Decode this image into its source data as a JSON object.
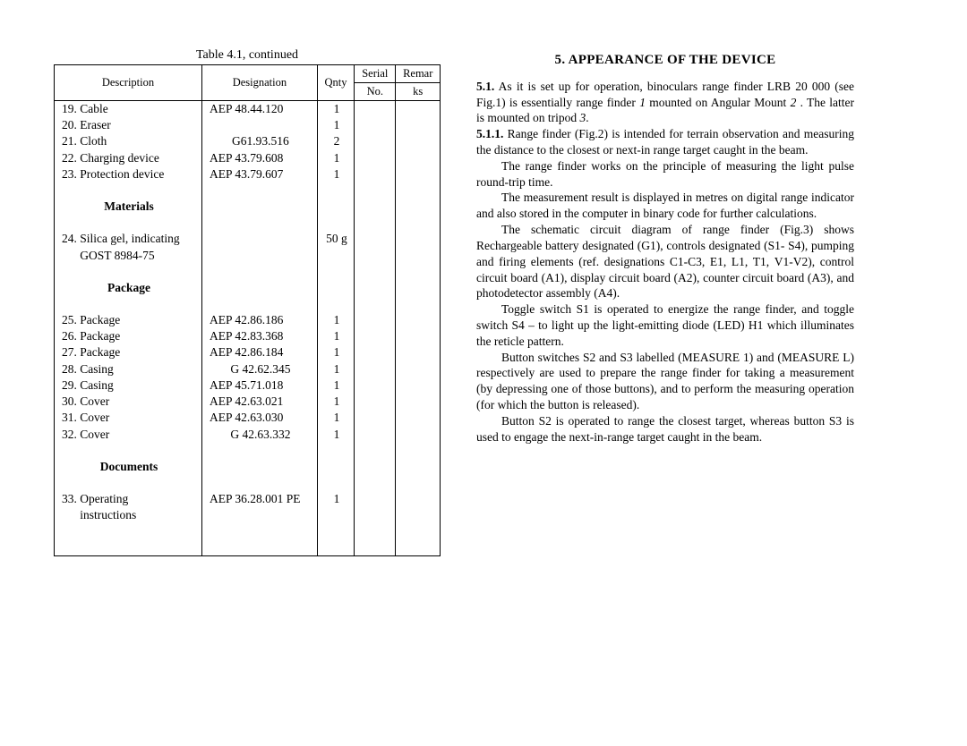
{
  "table": {
    "caption": "Table 4.1, continued",
    "headers": {
      "desc": "Description",
      "desig": "Designation",
      "qty": "Qnty",
      "serial": "Serial No.",
      "rem": "Remarks"
    },
    "rows": [
      {
        "desc": "19. Cable",
        "desig": "AEP 48.44.120",
        "qty": "1"
      },
      {
        "desc": "20. Eraser",
        "desig": "",
        "qty": "1"
      },
      {
        "desc": "21. Cloth",
        "desig": "G61.93.516",
        "qty": "2"
      },
      {
        "desc": "22. Charging device",
        "desig": "AEP 43.79.608",
        "qty": "1"
      },
      {
        "desc": "23. Protection device",
        "desig": "AEP 43.79.607",
        "qty": "1"
      },
      {
        "blank": true
      },
      {
        "desc": "Materials",
        "bold": true
      },
      {
        "blank": true
      },
      {
        "desc": "24. Silica gel, indicating",
        "desig": "",
        "qty": "50 g"
      },
      {
        "desc": "      GOST 8984-75",
        "desig": "",
        "qty": ""
      },
      {
        "blank": true
      },
      {
        "desc": "Package",
        "bold": true
      },
      {
        "blank": true
      },
      {
        "desc": "25. Package",
        "desig": "AEP 42.86.186",
        "qty": "1"
      },
      {
        "desc": "26. Package",
        "desig": "AEP 42.83.368",
        "qty": "1"
      },
      {
        "desc": "27. Package",
        "desig": "AEP 42.86.184",
        "qty": "1"
      },
      {
        "desc": "28. Casing",
        "desig": "G 42.62.345",
        "qty": "1"
      },
      {
        "desc": "29. Casing",
        "desig": "AEP 45.71.018",
        "qty": "1"
      },
      {
        "desc": "30. Cover",
        "desig": "AEP 42.63.021",
        "qty": "1"
      },
      {
        "desc": "31. Cover",
        "desig": "AEP 42.63.030",
        "qty": "1"
      },
      {
        "desc": "32. Cover",
        "desig": "G 42.63.332",
        "qty": "1"
      },
      {
        "blank": true
      },
      {
        "desc": "Documents",
        "bold": true
      },
      {
        "blank": true
      },
      {
        "desc": "33. Operating",
        "desig": "AEP 36.28.001 PE",
        "qty": "1"
      },
      {
        "desc": "      instructions",
        "desig": "",
        "qty": ""
      },
      {
        "blank": true
      },
      {
        "blank": true,
        "last": true
      }
    ]
  },
  "section": {
    "title": "5. APPEARANCE OF THE DEVICE",
    "p1_lead": "5.1.",
    "p1": " As it is set up for operation, binoculars range finder LRB 20 000 (see Fig.1) is essentially range finder ",
    "p1_i1": "1",
    "p1b": " mounted on Angular Mount ",
    "p1_i2": "2",
    "p1c": " . The latter is mounted on tripod ",
    "p1_i3": "3",
    "p1d": ".",
    "p2_lead": "5.1.1.",
    "p2": " Range finder (Fig.2) is intended for terrain observation and measuring the distance to the closest or next-in range target caught in the beam.",
    "p3": "The range finder works on the principle of measuring the light pulse round-trip time.",
    "p4": "The measurement result is displayed in metres on digital range indicator and also stored in the computer in binary code for further calculations.",
    "p5": "The schematic circuit diagram of range finder (Fig.3) shows Rechargeable battery designated (G1), controls designated (S1- S4), pumping and firing elements (ref. designations С1-С3, Е1, L1, Т1, V1-V2), control circuit board (А1), display circuit board (А2), counter circuit board (А3), and photodetector assembly (А4).",
    "p6": "Toggle switch S1 is operated to energize the range finder, and toggle switch S4 – to light up the light-emitting diode (LED) Н1 which illuminates the reticle pattern.",
    "p7": "Button switches S2 and S3 labelled (MEASURE 1) and (MEASURE L) respectively are used to prepare the range finder for taking a measurement (by depressing one of those buttons), and to perform the measuring operation (for which the button is released).",
    "p8": "Button S2 is operated to range the closest target, whereas button S3 is used to engage the next-in-range target caught in the beam."
  }
}
